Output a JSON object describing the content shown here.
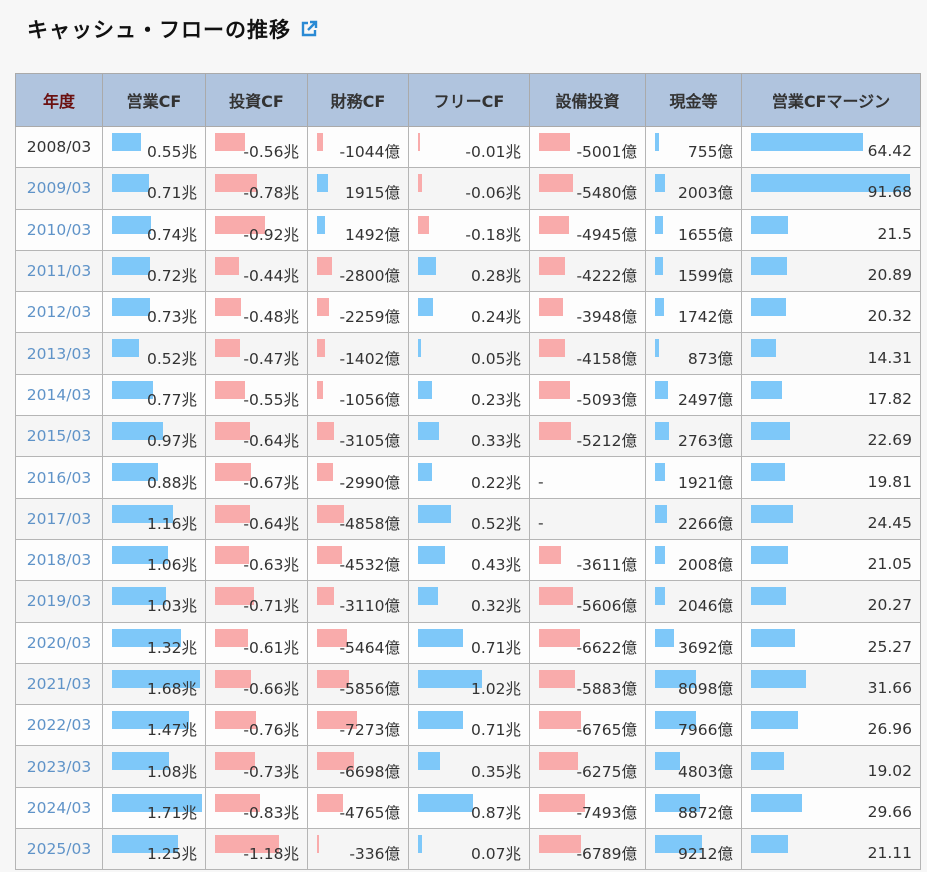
{
  "title": "キャッシュ・フローの推移",
  "colors": {
    "positive": "#7ec8f9",
    "negative": "#f9abab",
    "header": "#b0c4de",
    "link": "#5f93c8"
  },
  "headers": [
    "年度",
    "営業CF",
    "投資CF",
    "財務CF",
    "フリーCF",
    "設備投資",
    "現金等",
    "営業CFマージン"
  ],
  "rows": [
    [
      "2008/03",
      "0.55兆",
      "-0.56兆",
      "-1044億",
      "-0.01兆",
      "-5001億",
      "755億",
      "64.42"
    ],
    [
      "2009/03",
      "0.71兆",
      "-0.78兆",
      "1915億",
      "-0.06兆",
      "-5480億",
      "2003億",
      "91.68"
    ],
    [
      "2010/03",
      "0.74兆",
      "-0.92兆",
      "1492億",
      "-0.18兆",
      "-4945億",
      "1655億",
      "21.5"
    ],
    [
      "2011/03",
      "0.72兆",
      "-0.44兆",
      "-2800億",
      "0.28兆",
      "-4222億",
      "1599億",
      "20.89"
    ],
    [
      "2012/03",
      "0.73兆",
      "-0.48兆",
      "-2259億",
      "0.24兆",
      "-3948億",
      "1742億",
      "20.32"
    ],
    [
      "2013/03",
      "0.52兆",
      "-0.47兆",
      "-1402億",
      "0.05兆",
      "-4158億",
      "873億",
      "14.31"
    ],
    [
      "2014/03",
      "0.77兆",
      "-0.55兆",
      "-1056億",
      "0.23兆",
      "-5093億",
      "2497億",
      "17.82"
    ],
    [
      "2015/03",
      "0.97兆",
      "-0.64兆",
      "-3105億",
      "0.33兆",
      "-5212億",
      "2763億",
      "22.69"
    ],
    [
      "2016/03",
      "0.88兆",
      "-0.67兆",
      "-2990億",
      "0.22兆",
      "-",
      "1921億",
      "19.81"
    ],
    [
      "2017/03",
      "1.16兆",
      "-0.64兆",
      "-4858億",
      "0.52兆",
      "-",
      "2266億",
      "24.45"
    ],
    [
      "2018/03",
      "1.06兆",
      "-0.63兆",
      "-4532億",
      "0.43兆",
      "-3611億",
      "2008億",
      "21.05"
    ],
    [
      "2019/03",
      "1.03兆",
      "-0.71兆",
      "-3110億",
      "0.32兆",
      "-5606億",
      "2046億",
      "20.27"
    ],
    [
      "2020/03",
      "1.32兆",
      "-0.61兆",
      "-5464億",
      "0.71兆",
      "-6622億",
      "3692億",
      "25.27"
    ],
    [
      "2021/03",
      "1.68兆",
      "-0.66兆",
      "-5856億",
      "1.02兆",
      "-5883億",
      "8098億",
      "31.66"
    ],
    [
      "2022/03",
      "1.47兆",
      "-0.76兆",
      "-7273億",
      "0.71兆",
      "-6765億",
      "7966億",
      "26.96"
    ],
    [
      "2023/03",
      "1.08兆",
      "-0.73兆",
      "-6698億",
      "0.35兆",
      "-6275億",
      "4803億",
      "19.02"
    ],
    [
      "2024/03",
      "1.71兆",
      "-0.83兆",
      "-4765億",
      "0.87兆",
      "-7493億",
      "8872億",
      "29.66"
    ],
    [
      "2025/03",
      "1.25兆",
      "-1.18兆",
      "-336億",
      "0.07兆",
      "-6789億",
      "9212億",
      "21.11"
    ]
  ]
}
